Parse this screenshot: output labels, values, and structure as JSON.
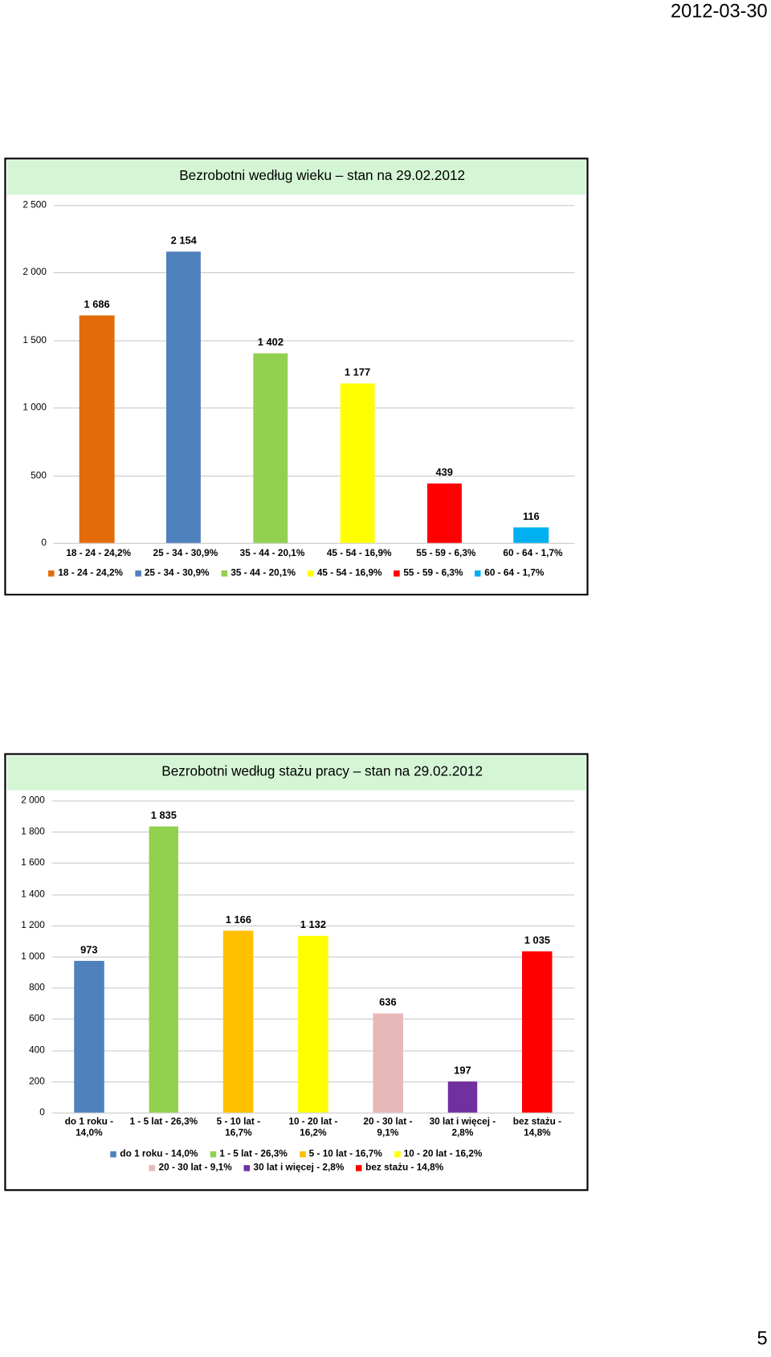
{
  "date": "2012-03-30",
  "chart_data": [
    {
      "type": "bar",
      "title": "Bezrobotni według wieku – stan na 29.02.2012",
      "categories": [
        "18 - 24 - 24,2%",
        "25 - 34 - 30,9%",
        "35 - 44 - 20,1%",
        "45 - 54 - 16,9%",
        "55 - 59 - 6,3%",
        "60 - 64 - 1,7%"
      ],
      "values": [
        1686,
        2154,
        1402,
        1177,
        439,
        116
      ],
      "value_labels": [
        "1 686",
        "2 154",
        "1 402",
        "1 177",
        "439",
        "116"
      ],
      "colors": [
        "#e36c09",
        "#4f81bd",
        "#92d050",
        "#ffff00",
        "#ff0000",
        "#00b0f0"
      ],
      "ylim": [
        0,
        2500
      ],
      "yticks": [
        0,
        500,
        {
          "value": 1000,
          "label": "1 000"
        },
        {
          "value": 1500,
          "label": "1 500"
        },
        {
          "value": 2000,
          "label": "2 000"
        },
        {
          "value": 2500,
          "label": "2 500"
        }
      ],
      "grid": true,
      "legend": "bottom"
    },
    {
      "type": "bar",
      "title": "Bezrobotni według stażu pracy – stan na 29.02.2012",
      "categories": [
        "do 1 roku - 14,0%",
        "1 - 5 lat - 26,3%",
        "5 - 10 lat - 16,7%",
        "10 - 20 lat - 16,2%",
        "20 - 30 lat - 9,1%",
        "30 lat i więcej - 2,8%",
        "bez stażu - 14,8%"
      ],
      "values": [
        973,
        1835,
        1166,
        1132,
        636,
        197,
        1035
      ],
      "value_labels": [
        "973",
        "1 835",
        "1 166",
        "1 132",
        "636",
        "197",
        "1 035"
      ],
      "colors": [
        "#4f81bd",
        "#92d050",
        "#ffc000",
        "#ffff00",
        "#e6b9b8",
        "#7030a0",
        "#ff0000"
      ],
      "ylim": [
        0,
        2000
      ],
      "yticks": [
        0,
        200,
        400,
        600,
        800,
        {
          "value": 1000,
          "label": "1 000"
        },
        {
          "value": 1200,
          "label": "1 200"
        },
        {
          "value": 1400,
          "label": "1 400"
        },
        {
          "value": 1600,
          "label": "1 600"
        },
        {
          "value": 1800,
          "label": "1 800"
        },
        {
          "value": 2000,
          "label": "2 000"
        }
      ],
      "grid": true,
      "legend": "bottom"
    }
  ],
  "page_number": 5
}
